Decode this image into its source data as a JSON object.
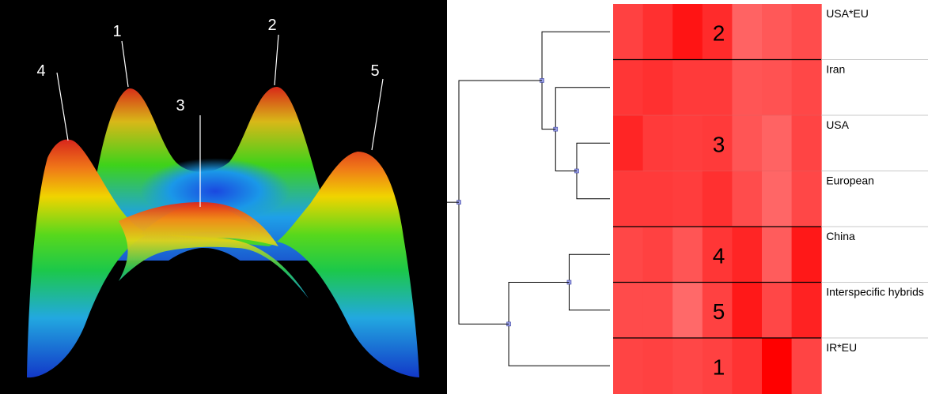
{
  "surface": {
    "background": "#000000",
    "peaks": [
      {
        "id": 4,
        "label": "4"
      },
      {
        "id": 1,
        "label": "1"
      },
      {
        "id": 3,
        "label": "3"
      },
      {
        "id": 2,
        "label": "2"
      },
      {
        "id": 5,
        "label": "5"
      }
    ],
    "colors": {
      "peak": "#d8261c",
      "mid_warm": "#f0d400",
      "mid": "#2fcf1f",
      "low": "#28a8e8",
      "base": "#1238c8"
    }
  },
  "heatmap": {
    "rows": [
      {
        "label": "USA*EU",
        "cluster": "2",
        "values": [
          0.62,
          0.72,
          0.88,
          0.75,
          0.42,
          0.48,
          0.55
        ]
      },
      {
        "label": "Iran",
        "cluster": "",
        "values": [
          0.68,
          0.72,
          0.66,
          0.66,
          0.5,
          0.52,
          0.58
        ]
      },
      {
        "label": "USA",
        "cluster": "3",
        "values": [
          0.78,
          0.66,
          0.64,
          0.66,
          0.5,
          0.42,
          0.6
        ]
      },
      {
        "label": "European",
        "cluster": "",
        "values": [
          0.66,
          0.66,
          0.64,
          0.72,
          0.55,
          0.4,
          0.58
        ]
      },
      {
        "label": "China",
        "cluster": "4",
        "values": [
          0.58,
          0.62,
          0.5,
          0.68,
          0.78,
          0.46,
          0.86
        ]
      },
      {
        "label": "Interspecific hybrids",
        "cluster": "5",
        "values": [
          0.56,
          0.56,
          0.38,
          0.62,
          0.86,
          0.58,
          0.8
        ]
      },
      {
        "label": "IR*EU",
        "cluster": "1",
        "values": [
          0.6,
          0.62,
          0.58,
          0.62,
          0.7,
          1.0,
          0.6
        ]
      }
    ],
    "row_groups": [
      [
        0
      ],
      [
        1,
        2,
        3
      ],
      [
        4
      ],
      [
        5
      ],
      [
        6
      ]
    ],
    "dendrogram": {
      "merges": [
        {
          "a": 2,
          "b": 3,
          "height": 0.22
        },
        {
          "a": 1,
          "b": "m0",
          "height": 0.36
        },
        {
          "a": 0,
          "b": "m1",
          "height": 0.45
        },
        {
          "a": 4,
          "b": 5,
          "height": 0.27
        },
        {
          "a": 6,
          "b": "m3",
          "height": 0.67
        },
        {
          "a": "m2",
          "b": "m4",
          "height": 1.0
        }
      ]
    },
    "colors": {
      "low": "#ffa0a0",
      "high": "#ff0000",
      "line": "#000000",
      "node": "#9aa0e8"
    }
  }
}
